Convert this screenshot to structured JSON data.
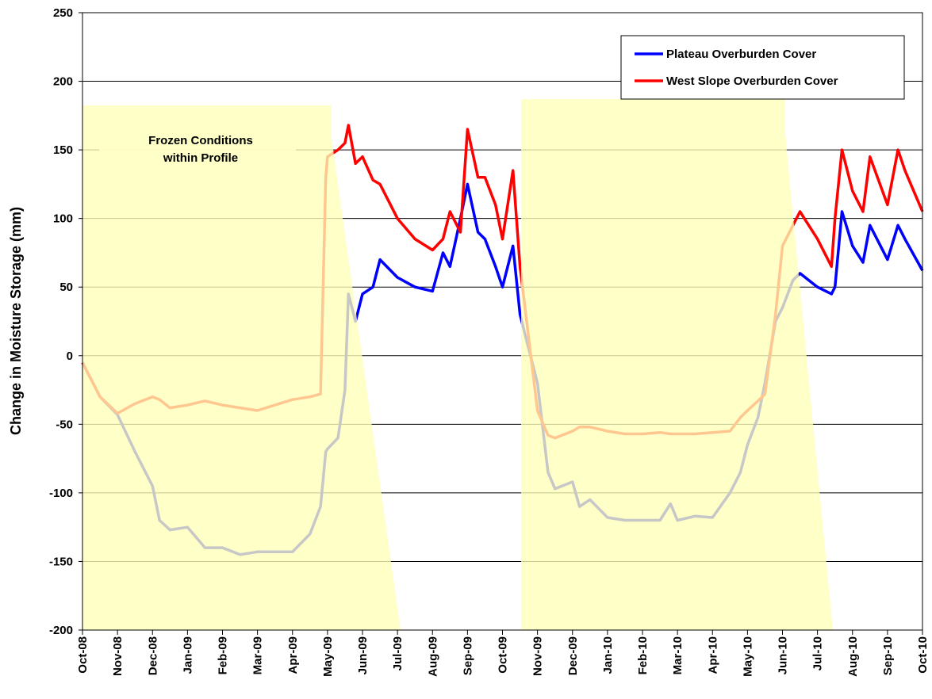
{
  "chart_data": {
    "type": "line",
    "y_label": "Change in Moisture Storage (mm)",
    "annotation": [
      "Frozen Conditions",
      "within Profile"
    ],
    "ylim": [
      -200,
      250
    ],
    "yticks": [
      -200,
      -150,
      -100,
      -50,
      0,
      50,
      100,
      150,
      200,
      250
    ],
    "xlim": [
      0,
      24
    ],
    "xticks": [
      {
        "value": 0,
        "label": "Oct-08"
      },
      {
        "value": 1,
        "label": "Nov-08"
      },
      {
        "value": 2,
        "label": "Dec-08"
      },
      {
        "value": 3,
        "label": "Jan-09"
      },
      {
        "value": 4,
        "label": "Feb-09"
      },
      {
        "value": 5,
        "label": "Mar-09"
      },
      {
        "value": 6,
        "label": "Apr-09"
      },
      {
        "value": 7,
        "label": "May-09"
      },
      {
        "value": 8,
        "label": "Jun-09"
      },
      {
        "value": 9,
        "label": "Jul-09"
      },
      {
        "value": 10,
        "label": "Aug-09"
      },
      {
        "value": 11,
        "label": "Sep-09"
      },
      {
        "value": 12,
        "label": "Oct-09"
      },
      {
        "value": 13,
        "label": "Nov-09"
      },
      {
        "value": 14,
        "label": "Dec-09"
      },
      {
        "value": 15,
        "label": "Jan-10"
      },
      {
        "value": 16,
        "label": "Feb-10"
      },
      {
        "value": 17,
        "label": "Mar-10"
      },
      {
        "value": 18,
        "label": "Apr-10"
      },
      {
        "value": 19,
        "label": "May-10"
      },
      {
        "value": 20,
        "label": "Jun-10"
      },
      {
        "value": 21,
        "label": "Jul-10"
      },
      {
        "value": 22,
        "label": "Aug-10"
      },
      {
        "value": 23,
        "label": "Sep-10"
      },
      {
        "value": 24,
        "label": "Oct-10"
      }
    ],
    "grid": true,
    "legend_position": "upper right",
    "x": [
      0,
      0.5,
      1,
      1.5,
      2,
      2.2,
      2.5,
      3,
      3.5,
      4,
      4.5,
      5,
      5.5,
      6,
      6.5,
      6.8,
      6.95,
      7,
      7.3,
      7.5,
      7.6,
      7.8,
      8,
      8.3,
      8.5,
      9,
      9.5,
      10,
      10.3,
      10.5,
      10.8,
      11,
      11.3,
      11.5,
      11.8,
      12,
      12.3,
      12.5,
      13,
      13.3,
      13.5,
      14,
      14.2,
      14.5,
      15,
      15.5,
      16,
      16.5,
      16.8,
      17,
      17.5,
      18,
      18.5,
      18.8,
      19,
      19.3,
      19.5,
      19.8,
      20,
      20.3,
      20.5,
      21,
      21.4,
      21.5,
      21.7,
      22,
      22.3,
      22.5,
      23,
      23.3,
      23.5,
      24
    ],
    "series": [
      {
        "name": "Plateau Overburden Cover",
        "color": "#0000ff",
        "values": [
          -5,
          -30,
          -43,
          -70,
          -95,
          -120,
          -127,
          -125,
          -140,
          -140,
          -145,
          -143,
          -143,
          -143,
          -130,
          -110,
          -70,
          -68,
          -60,
          -25,
          45,
          25,
          45,
          50,
          70,
          57,
          50,
          47,
          75,
          65,
          100,
          125,
          90,
          85,
          65,
          50,
          80,
          30,
          -20,
          -85,
          -97,
          -92,
          -110,
          -105,
          -118,
          -120,
          -120,
          -120,
          -108,
          -120,
          -117,
          -118,
          -100,
          -85,
          -65,
          -45,
          -20,
          25,
          35,
          55,
          60,
          50,
          45,
          50,
          105,
          80,
          68,
          95,
          70,
          95,
          85,
          62
        ]
      },
      {
        "name": "West Slope Overburden Cover",
        "color": "#ff0000",
        "values": [
          -5,
          -30,
          -42,
          -35,
          -30,
          -32,
          -38,
          -36,
          -33,
          -36,
          -38,
          -40,
          -36,
          -32,
          -30,
          -28,
          130,
          145,
          150,
          155,
          168,
          140,
          145,
          128,
          125,
          100,
          85,
          77,
          85,
          105,
          90,
          165,
          130,
          130,
          110,
          85,
          135,
          65,
          -40,
          -58,
          -60,
          -55,
          -52,
          -52,
          -55,
          -57,
          -57,
          -56,
          -57,
          -57,
          -57,
          -56,
          -55,
          -45,
          -40,
          -33,
          -28,
          30,
          80,
          95,
          105,
          85,
          65,
          100,
          150,
          120,
          105,
          145,
          110,
          150,
          135,
          105
        ]
      }
    ]
  }
}
